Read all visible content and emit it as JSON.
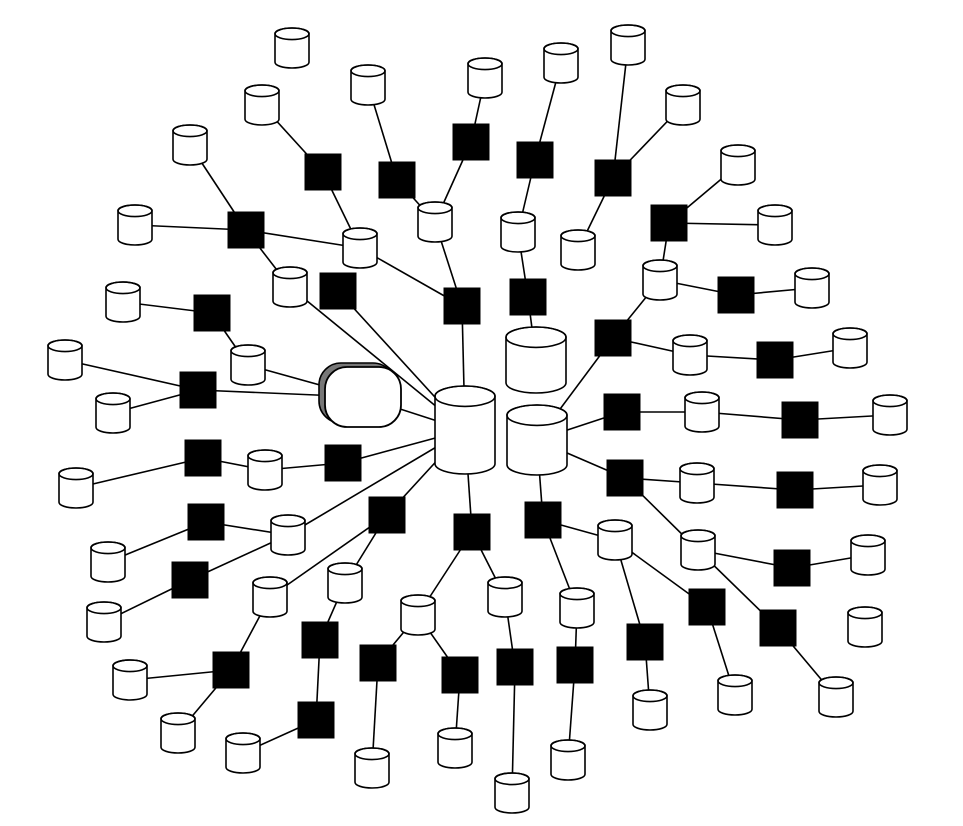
{
  "diagram": {
    "kind": "network-topology",
    "colors": {
      "background": "#ffffff",
      "line": "#000000",
      "database_fill": "#ffffff",
      "switch_fill": "#000000",
      "terminal_shadow": "#777777"
    },
    "icons": {
      "database": "database-cylinder-icon",
      "switch": "filled-square-node-icon",
      "terminal": "rounded-terminal-icon"
    },
    "labels": []
  }
}
